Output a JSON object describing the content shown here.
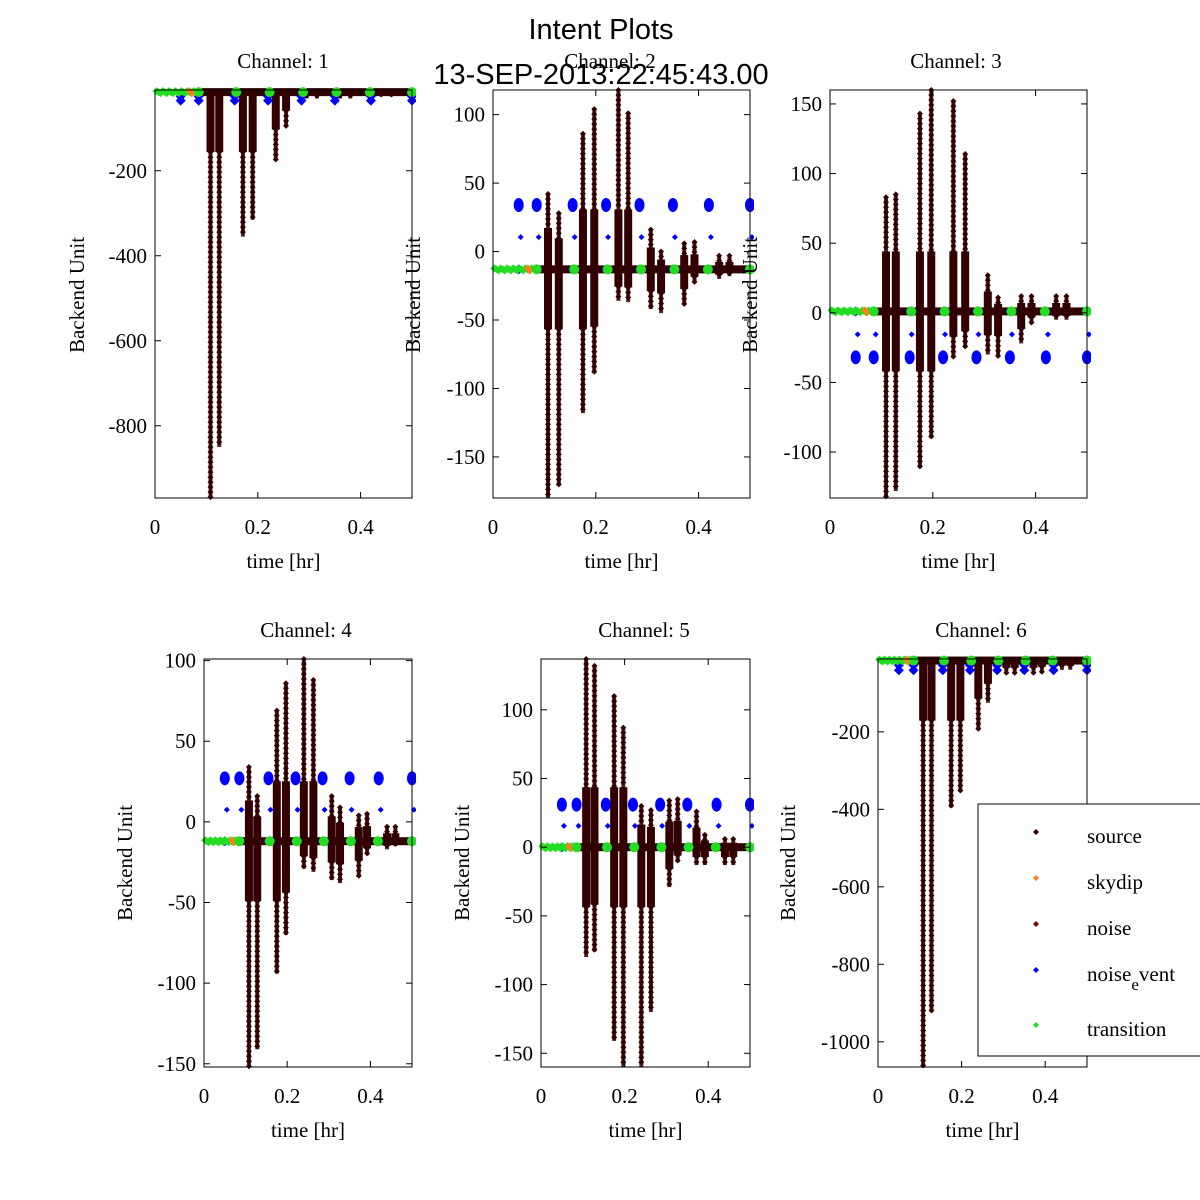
{
  "figure": {
    "title_line1": "Intent Plots",
    "title_line2": "13-SEP-2013:22:45:43.00"
  },
  "colors": {
    "source": "#330000",
    "skydip": "#ff7f1e",
    "noise": "#7f0000",
    "noise_event": "#0000ff",
    "transition": "#22dd22"
  },
  "legend": {
    "placement": "lower-right of Channel 6",
    "entries": [
      {
        "label": "source",
        "key": "source"
      },
      {
        "label": "skydip",
        "key": "skydip"
      },
      {
        "label": "noise",
        "key": "noise"
      },
      {
        "label_main": "noise",
        "label_sub": "e",
        "label_tail": "vent",
        "key": "noise_event"
      },
      {
        "label": "transition",
        "key": "transition"
      }
    ]
  },
  "chart_data": [
    {
      "type": "scatter",
      "title": "Channel: 1",
      "xlabel": "time [hr]",
      "ylabel": "Backend Unit",
      "xlim": [
        0,
        0.5
      ],
      "ylim": [
        -970,
        -10
      ],
      "xticks": [
        0,
        0.2,
        0.4
      ],
      "xtick_labels": [
        "0",
        "0.2",
        "0.4"
      ],
      "yticks": [
        -200,
        -400,
        -600,
        -800
      ],
      "ytick_labels": [
        "-200",
        "-400",
        "-600",
        "-800"
      ],
      "baseline": -15,
      "transition_end": 0.09,
      "source_spikes": [
        [
          0.108,
          -970,
          -15
        ],
        [
          0.125,
          -850,
          -15
        ],
        [
          0.171,
          -355,
          -15
        ],
        [
          0.19,
          -315,
          -15
        ],
        [
          0.235,
          -175,
          -15
        ],
        [
          0.255,
          -95,
          -15
        ],
        [
          0.295,
          -30,
          -15
        ],
        [
          0.315,
          -30,
          -15
        ],
        [
          0.36,
          -30,
          -15
        ],
        [
          0.38,
          -30,
          -15
        ],
        [
          0.44,
          -25,
          -15
        ],
        [
          0.46,
          -25,
          -15
        ]
      ],
      "noise_event_x": [
        0.05,
        0.085,
        0.155,
        0.22,
        0.285,
        0.35,
        0.42,
        0.5
      ],
      "noise_event_offsets": [
        -10,
        -20
      ],
      "transition_x": [
        0.085,
        0.158,
        0.223,
        0.288,
        0.353,
        0.418,
        0.5
      ]
    },
    {
      "type": "scatter",
      "title": "Channel: 2",
      "xlabel": "time [hr]",
      "ylabel": "Backend Unit",
      "xlim": [
        0,
        0.5
      ],
      "ylim": [
        -180,
        118
      ],
      "xticks": [
        0,
        0.2,
        0.4
      ],
      "xtick_labels": [
        "0",
        "0.2",
        "0.4"
      ],
      "yticks": [
        100,
        50,
        0,
        -50,
        -100,
        -150
      ],
      "ytick_labels": [
        "100",
        "50",
        "0",
        "-50",
        "-100",
        "-150"
      ],
      "baseline": -13,
      "transition_end": 0.09,
      "source_spikes": [
        [
          0.107,
          -180,
          42
        ],
        [
          0.128,
          -171,
          28
        ],
        [
          0.175,
          -118,
          86
        ],
        [
          0.197,
          -89,
          104
        ],
        [
          0.244,
          -36,
          118
        ],
        [
          0.263,
          -37,
          101
        ],
        [
          0.307,
          -42,
          16
        ],
        [
          0.327,
          -45,
          0
        ],
        [
          0.372,
          -39,
          6
        ],
        [
          0.392,
          -23,
          7
        ],
        [
          0.44,
          -20,
          -3
        ],
        [
          0.46,
          -18,
          -3
        ]
      ],
      "noise_event_x": [
        0.05,
        0.085,
        0.155,
        0.22,
        0.285,
        0.35,
        0.42,
        0.5
      ],
      "noise_event_cluster": 34,
      "transition_x": [
        0.085,
        0.158,
        0.223,
        0.288,
        0.353,
        0.418,
        0.5
      ]
    },
    {
      "type": "scatter",
      "title": "Channel: 3",
      "xlabel": "time [hr]",
      "ylabel": "Backend Unit",
      "xlim": [
        0,
        0.5
      ],
      "ylim": [
        -133,
        160
      ],
      "xticks": [
        0,
        0.2,
        0.4
      ],
      "xtick_labels": [
        "0",
        "0.2",
        "0.4"
      ],
      "yticks": [
        150,
        100,
        50,
        0,
        -50,
        -100
      ],
      "ytick_labels": [
        "150",
        "100",
        "50",
        "0",
        "-50",
        "-100"
      ],
      "baseline": 1,
      "transition_end": 0.09,
      "source_spikes": [
        [
          0.109,
          -133,
          83
        ],
        [
          0.128,
          -128,
          85
        ],
        [
          0.175,
          -111,
          143
        ],
        [
          0.197,
          -90,
          160
        ],
        [
          0.24,
          -32,
          152
        ],
        [
          0.263,
          -25,
          114
        ],
        [
          0.307,
          -30,
          27
        ],
        [
          0.327,
          -31,
          11
        ],
        [
          0.372,
          -22,
          12
        ],
        [
          0.392,
          -7,
          12
        ],
        [
          0.44,
          -5,
          12
        ],
        [
          0.46,
          -5,
          12
        ]
      ],
      "noise_event_x": [
        0.05,
        0.085,
        0.155,
        0.22,
        0.285,
        0.35,
        0.42,
        0.5
      ],
      "noise_event_cluster": -32,
      "transition_x": [
        0.085,
        0.158,
        0.223,
        0.288,
        0.353,
        0.418,
        0.5
      ]
    },
    {
      "type": "scatter",
      "title": "Channel: 4",
      "xlabel": "time [hr]",
      "ylabel": "Backend Unit",
      "xlim": [
        0,
        0.5
      ],
      "ylim": [
        -152,
        101
      ],
      "xticks": [
        0,
        0.2,
        0.4
      ],
      "xtick_labels": [
        "0",
        "0.2",
        "0.4"
      ],
      "yticks": [
        100,
        50,
        0,
        -50,
        -100,
        -150
      ],
      "ytick_labels": [
        "100",
        "50",
        "0",
        "-50",
        "-100",
        "-150"
      ],
      "baseline": -12,
      "transition_end": 0.09,
      "source_spikes": [
        [
          0.108,
          -152,
          34
        ],
        [
          0.128,
          -141,
          16
        ],
        [
          0.175,
          -94,
          69
        ],
        [
          0.197,
          -70,
          86
        ],
        [
          0.24,
          -29,
          101
        ],
        [
          0.263,
          -31,
          88
        ],
        [
          0.307,
          -36,
          16
        ],
        [
          0.327,
          -38,
          9
        ],
        [
          0.372,
          -34,
          4
        ],
        [
          0.392,
          -20,
          5
        ],
        [
          0.44,
          -17,
          -3
        ],
        [
          0.46,
          -15,
          -3
        ]
      ],
      "noise_event_x": [
        0.05,
        0.085,
        0.155,
        0.22,
        0.285,
        0.35,
        0.42,
        0.5
      ],
      "noise_event_cluster": 27,
      "transition_x": [
        0.085,
        0.158,
        0.223,
        0.288,
        0.353,
        0.418,
        0.5
      ]
    },
    {
      "type": "scatter",
      "title": "Channel: 5",
      "xlabel": "time [hr]",
      "ylabel": "Backend Unit",
      "xlim": [
        0,
        0.5
      ],
      "ylim": [
        -160,
        137
      ],
      "xticks": [
        0,
        0.2,
        0.4
      ],
      "xtick_labels": [
        "0",
        "0.2",
        "0.4"
      ],
      "yticks": [
        100,
        50,
        0,
        -50,
        -100,
        -150
      ],
      "ytick_labels": [
        "100",
        "50",
        "0",
        "-50",
        "-100",
        "-150"
      ],
      "baseline": 0,
      "transition_end": 0.09,
      "source_spikes": [
        [
          0.108,
          -80,
          137
        ],
        [
          0.128,
          -76,
          132
        ],
        [
          0.175,
          -141,
          110
        ],
        [
          0.197,
          -160,
          87
        ],
        [
          0.24,
          -160,
          30
        ],
        [
          0.263,
          -120,
          27
        ],
        [
          0.307,
          -29,
          34
        ],
        [
          0.327,
          -11,
          35
        ],
        [
          0.372,
          -13,
          26
        ],
        [
          0.392,
          -13,
          9
        ],
        [
          0.44,
          -13,
          6
        ],
        [
          0.46,
          -13,
          6
        ]
      ],
      "noise_event_x": [
        0.05,
        0.085,
        0.155,
        0.22,
        0.285,
        0.35,
        0.42,
        0.5
      ],
      "noise_event_cluster": 31,
      "transition_x": [
        0.085,
        0.158,
        0.223,
        0.288,
        0.353,
        0.418,
        0.5
      ]
    },
    {
      "type": "scatter",
      "title": "Channel: 6",
      "xlabel": "time [hr]",
      "ylabel": "Backend Unit",
      "xlim": [
        0,
        0.5
      ],
      "ylim": [
        -1065,
        -12
      ],
      "xticks": [
        0,
        0.2,
        0.4
      ],
      "xtick_labels": [
        "0",
        "0.2",
        "0.4"
      ],
      "yticks": [
        -200,
        -400,
        -600,
        -800,
        -1000
      ],
      "ytick_labels": [
        "-200",
        "-400",
        "-600",
        "-800",
        "-1000"
      ],
      "baseline": -16,
      "transition_end": 0.09,
      "source_spikes": [
        [
          0.108,
          -1065,
          -16
        ],
        [
          0.128,
          -920,
          -16
        ],
        [
          0.175,
          -395,
          -16
        ],
        [
          0.197,
          -355,
          -16
        ],
        [
          0.24,
          -195,
          -16
        ],
        [
          0.263,
          -125,
          -16
        ],
        [
          0.307,
          -50,
          -16
        ],
        [
          0.327,
          -50,
          -16
        ],
        [
          0.372,
          -50,
          -16
        ],
        [
          0.392,
          -45,
          -16
        ],
        [
          0.44,
          -40,
          -16
        ],
        [
          0.46,
          -40,
          -16
        ]
      ],
      "noise_event_x": [
        0.05,
        0.085,
        0.155,
        0.22,
        0.285,
        0.35,
        0.42,
        0.5
      ],
      "noise_event_offsets": [
        -12,
        -25
      ],
      "transition_x": [
        0.085,
        0.158,
        0.223,
        0.288,
        0.353,
        0.418,
        0.5
      ]
    }
  ]
}
